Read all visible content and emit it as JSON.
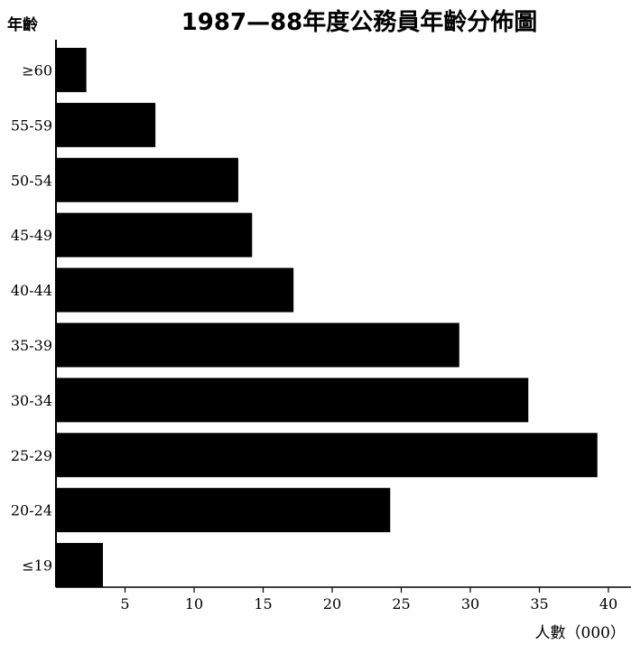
{
  "chart_data": {
    "type": "bar",
    "orientation": "horizontal",
    "title": "1987—88年度公務員年齡分佈圖",
    "ylabel": "年齡",
    "xlabel": "人數（000）",
    "categories": [
      "≥60",
      "55-59",
      "50-54",
      "45-49",
      "40-44",
      "35-39",
      "30-34",
      "25-29",
      "20-24",
      "≤19"
    ],
    "values": [
      2.2,
      7.2,
      13.2,
      14.2,
      17.2,
      29.2,
      34.2,
      39.2,
      24.2,
      3.4
    ],
    "xticks": [
      "5",
      "10",
      "15",
      "20",
      "25",
      "30",
      "35",
      "40"
    ],
    "xlim": [
      0,
      42
    ],
    "bar_color": "#000000",
    "grid": false,
    "legend": "none"
  }
}
